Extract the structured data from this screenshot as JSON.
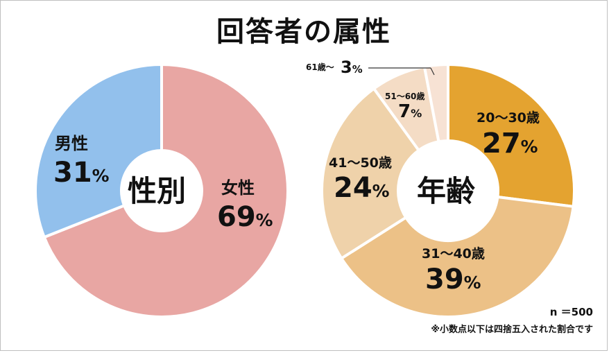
{
  "title": "回答者の属性",
  "chart_data": [
    {
      "type": "pie",
      "center_label": "性別",
      "categories": [
        "女性",
        "男性"
      ],
      "values": [
        69,
        31
      ],
      "unit": "%",
      "colors": [
        "#e8a6a3",
        "#92c0ec"
      ]
    },
    {
      "type": "pie",
      "center_label": "年齢",
      "categories": [
        "20～30歳",
        "31～40歳",
        "41～50歳",
        "51～60歳",
        "61歳～"
      ],
      "values": [
        27,
        39,
        24,
        7,
        3
      ],
      "unit": "%",
      "colors": [
        "#e4a330",
        "#ecc187",
        "#efd2aa",
        "#f4dcc5",
        "#f7e2d4"
      ]
    }
  ],
  "notes": {
    "n": "n ＝500",
    "footnote": "※小数点以下は四捨五入された割合です"
  },
  "pct_sign": "%"
}
